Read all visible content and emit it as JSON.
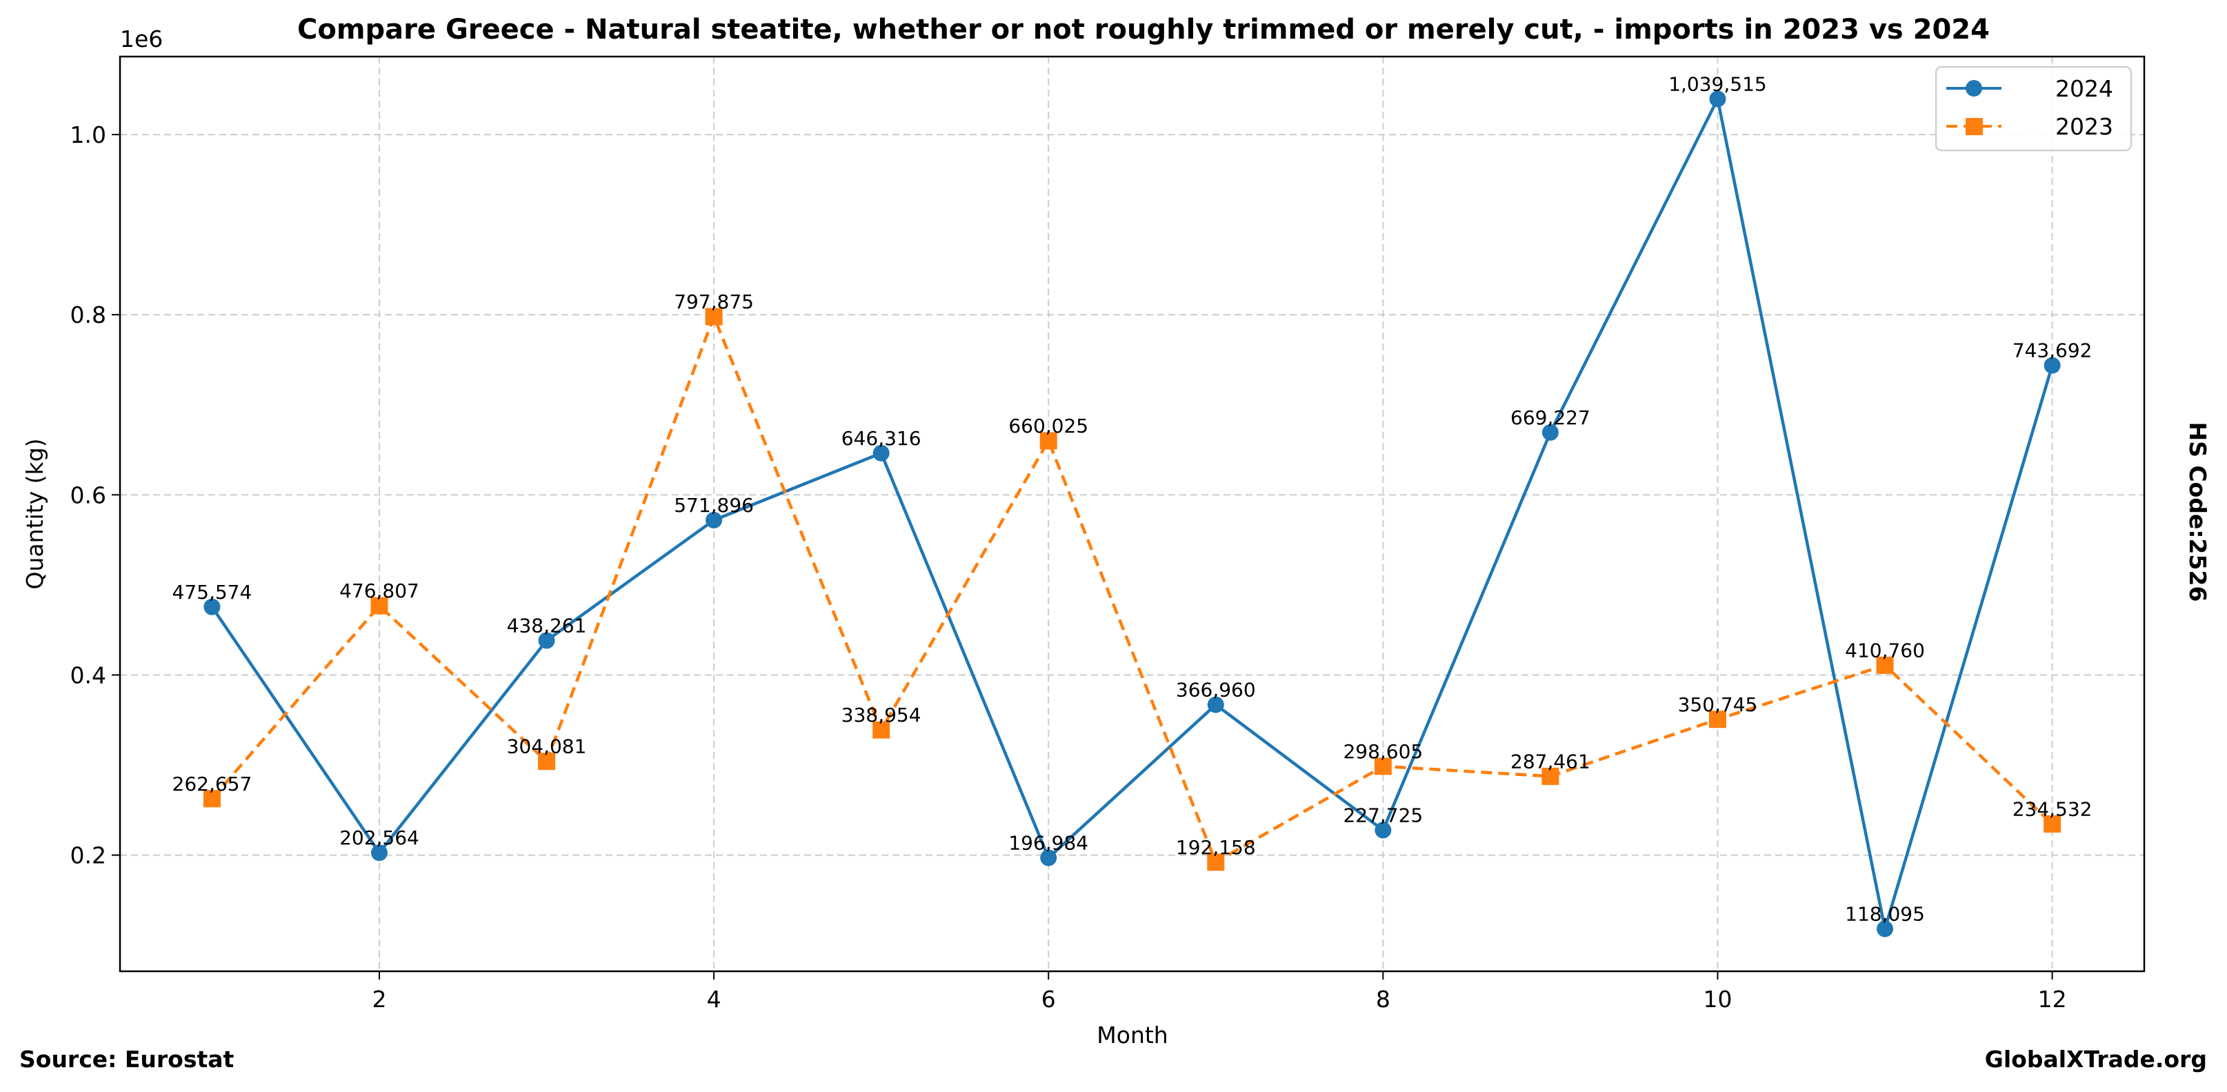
{
  "chart_data": {
    "type": "line",
    "title": "Compare Greece - Natural steatite, whether or not roughly trimmed or merely cut, - imports in 2023 vs 2024",
    "xlabel": "Month",
    "ylabel": "Quantity (kg)",
    "y_offset_label": "1e6",
    "x": [
      1,
      2,
      3,
      4,
      5,
      6,
      7,
      8,
      9,
      10,
      11,
      12
    ],
    "x_ticks": [
      2,
      4,
      6,
      8,
      10,
      12
    ],
    "x_tick_labels": [
      "2",
      "4",
      "6",
      "8",
      "10",
      "12"
    ],
    "y_ticks": [
      200000,
      400000,
      600000,
      800000,
      1000000
    ],
    "y_tick_labels": [
      "0.2",
      "0.4",
      "0.6",
      "0.8",
      "1.0"
    ],
    "xlim": [
      0.45,
      12.55
    ],
    "ylim": [
      71000,
      1086600
    ],
    "grid": true,
    "legend_position": "top-right",
    "series": [
      {
        "name": "2024",
        "color": "#1f77b4",
        "line_style": "solid",
        "marker": "circle",
        "values": [
          475574,
          202564,
          438261,
          571896,
          646316,
          196984,
          366960,
          227725,
          669227,
          1039515,
          118095,
          743692
        ],
        "labels": [
          "475,574",
          "202,564",
          "438,261",
          "571,896",
          "646,316",
          "196,984",
          "366,960",
          "227,725",
          "669,227",
          "1,039,515",
          "118,095",
          "743,692"
        ]
      },
      {
        "name": "2023",
        "color": "#ff7f0e",
        "line_style": "dashed",
        "marker": "square",
        "values": [
          262657,
          476807,
          304081,
          797875,
          338954,
          660025,
          192158,
          298605,
          287461,
          350745,
          410760,
          234532
        ],
        "labels": [
          "262,657",
          "476,807",
          "304,081",
          "797,875",
          "338,954",
          "660,025",
          "192,158",
          "298,605",
          "287,461",
          "350,745",
          "410,760",
          "234,532"
        ]
      }
    ]
  },
  "footer": {
    "source": "Source: Eurostat",
    "brand": "GlobalXTrade.org"
  },
  "side_note": "HS Code:2526"
}
